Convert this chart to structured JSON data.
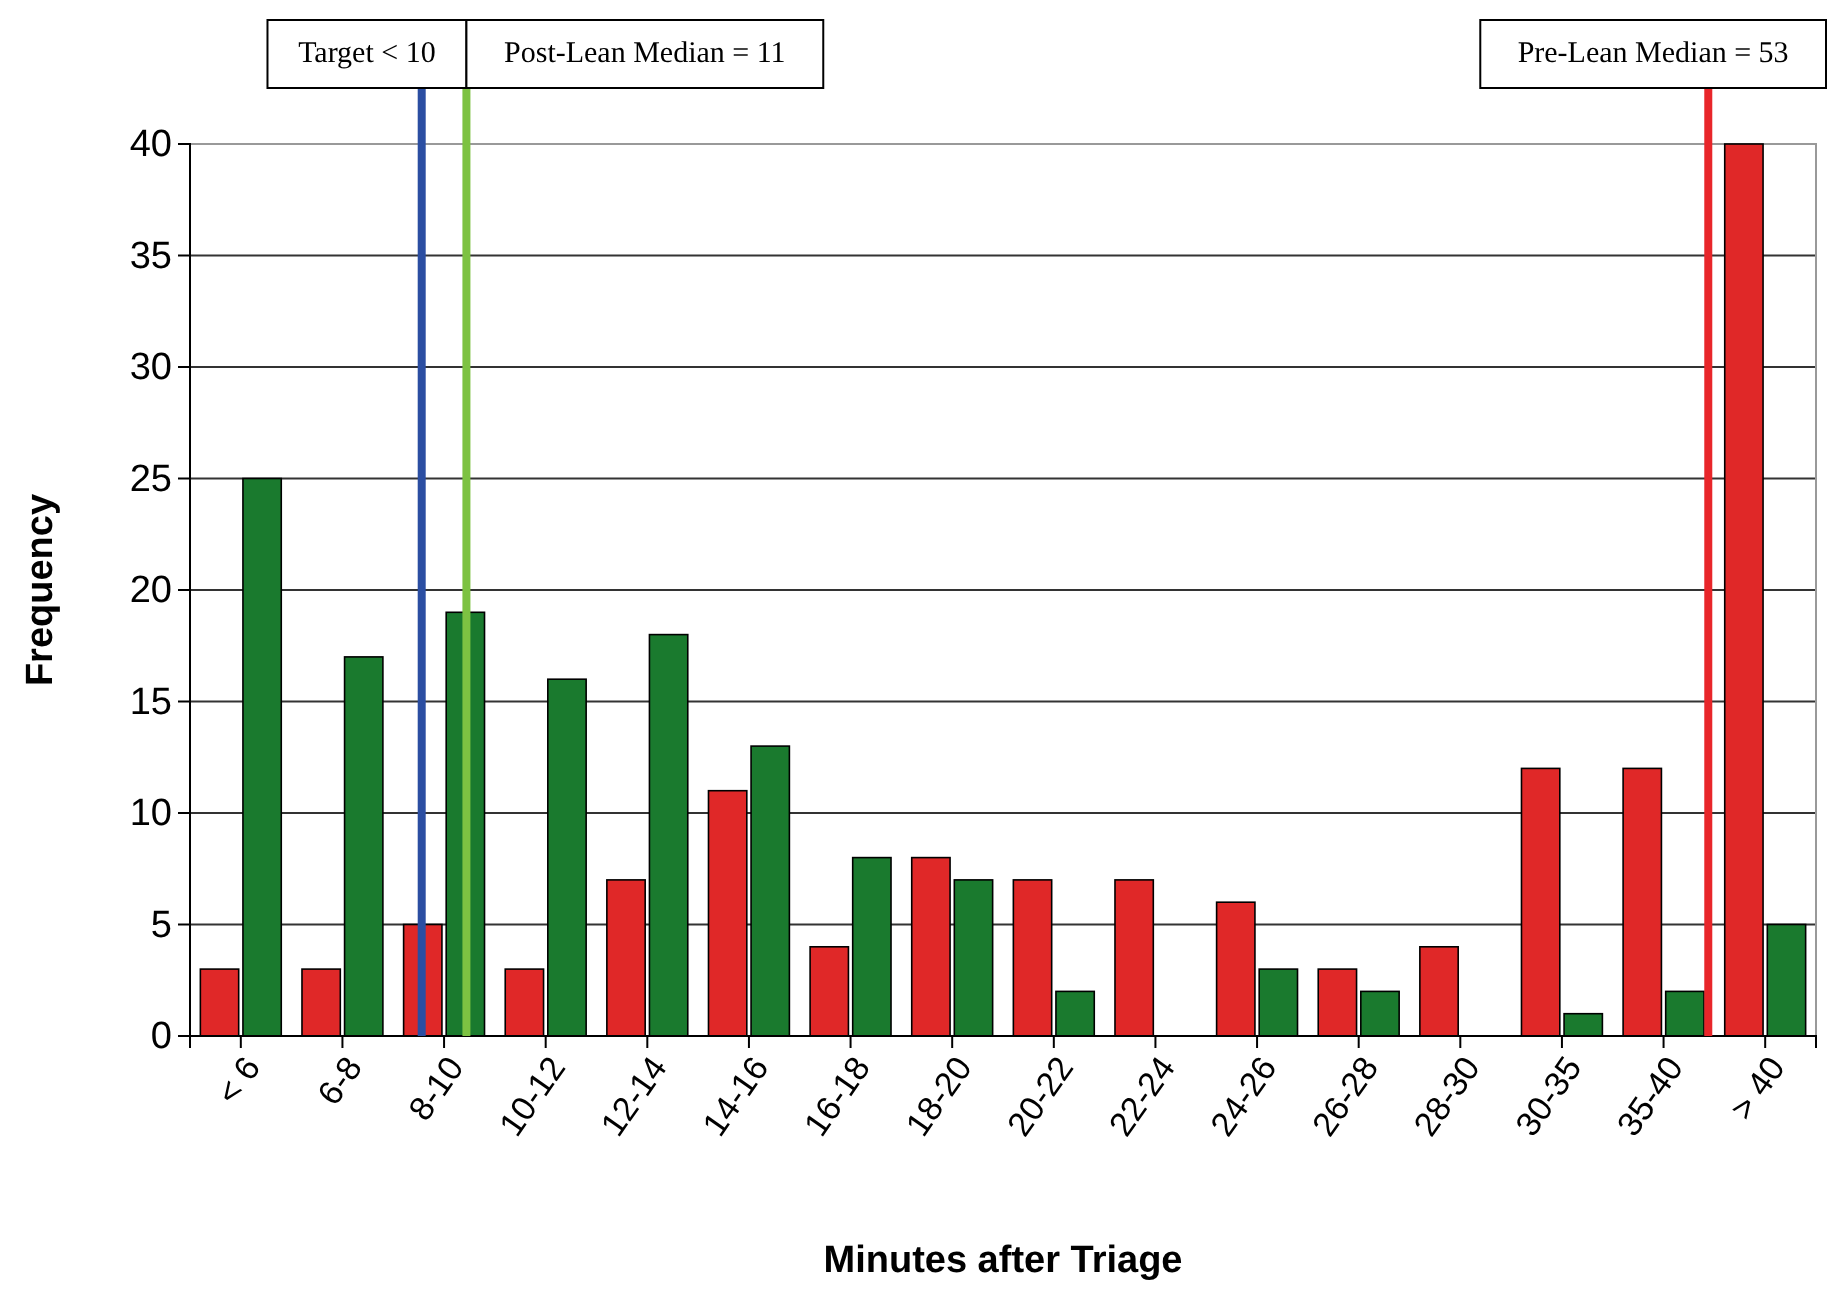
{
  "chart_data": {
    "type": "bar",
    "xlabel": "Minutes after Triage",
    "ylabel": "Frequency",
    "categories": [
      "< 6",
      "6-8",
      "8-10",
      "10-12",
      "12-14",
      "14-16",
      "16-18",
      "18-20",
      "20-22",
      "22-24",
      "24-26",
      "26-28",
      "28-30",
      "30-35",
      "35-40",
      "> 40"
    ],
    "series": [
      {
        "color": "#e02828",
        "values": [
          3,
          3,
          5,
          3,
          7,
          11,
          4,
          8,
          7,
          7,
          6,
          3,
          4,
          12,
          12,
          40
        ]
      },
      {
        "color": "#1a7a2e",
        "values": [
          25,
          17,
          19,
          16,
          18,
          13,
          8,
          7,
          2,
          0,
          3,
          2,
          0,
          1,
          2,
          5
        ]
      }
    ],
    "ylim": [
      0,
      40
    ],
    "yticks": [
      0,
      5,
      10,
      15,
      20,
      25,
      30,
      35,
      40
    ],
    "grid": "y",
    "ref_lines": [
      {
        "axis": "x",
        "value": "8-10",
        "label": "Target < 10",
        "color": "#2b4ea2"
      },
      {
        "axis": "x",
        "value": "8-10",
        "label": "Post-Lean Median = 11",
        "color": "#7dc242"
      },
      {
        "axis": "x",
        "value": "35-40",
        "label": "Pre-Lean Median = 53",
        "color": "#e8262a"
      }
    ]
  }
}
